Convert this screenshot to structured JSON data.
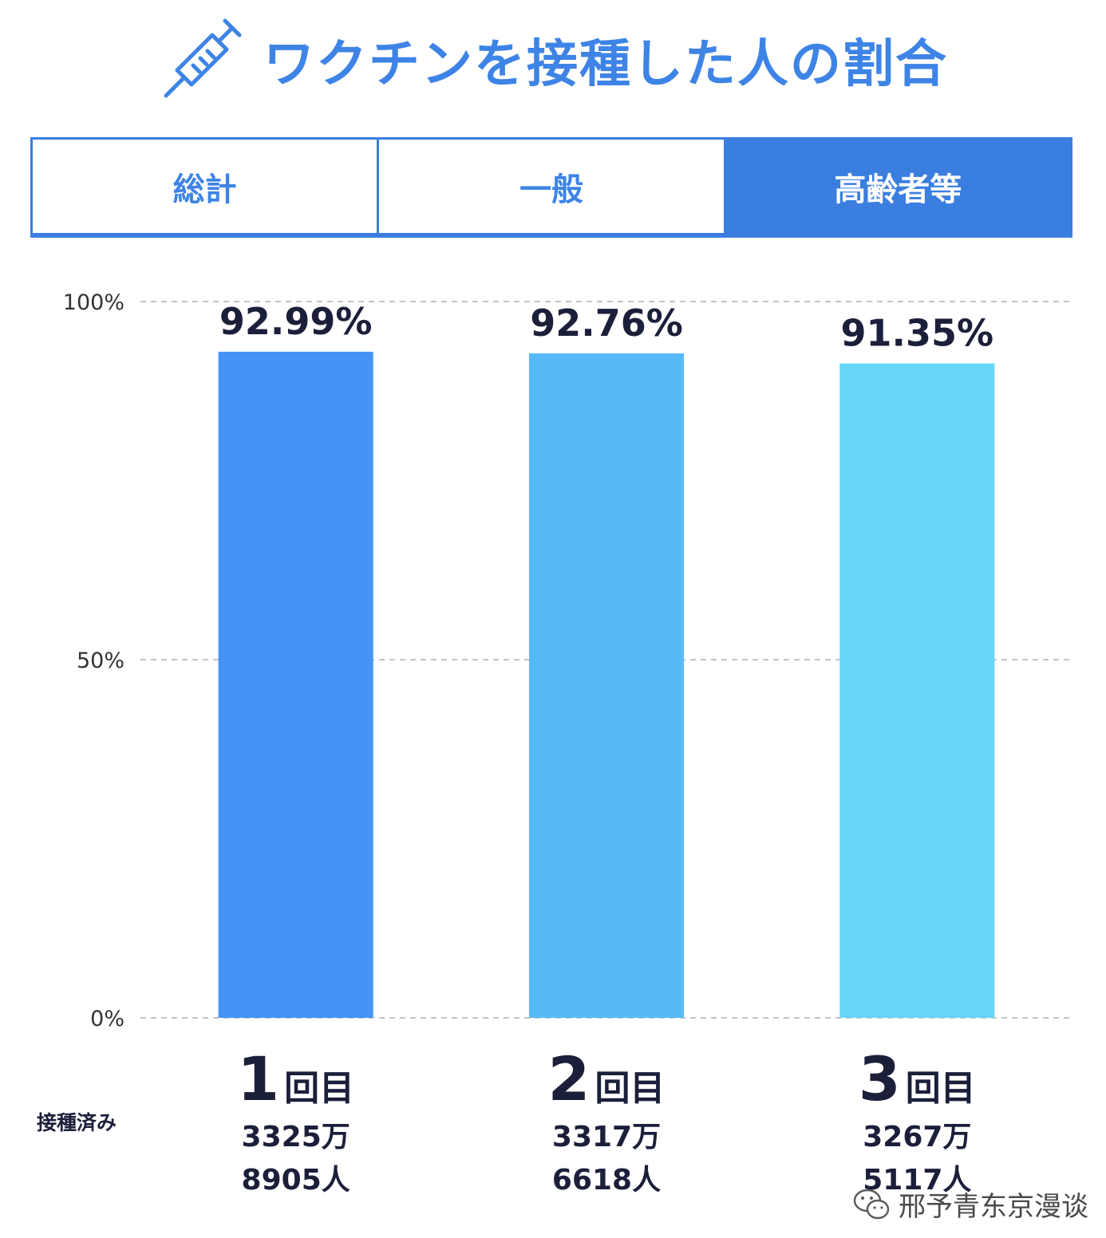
{
  "title": "ワクチンを接種した人の割合",
  "tabs": [
    {
      "label": "総計",
      "active": false
    },
    {
      "label": "一般",
      "active": false
    },
    {
      "label": "高齢者等",
      "active": true
    }
  ],
  "row_label": "接種済み",
  "doses": [
    {
      "num": "1",
      "unit": "回目",
      "count_line1": "3325万",
      "count_line2": "8905人"
    },
    {
      "num": "2",
      "unit": "回目",
      "count_line1": "3317万",
      "count_line2": "6618人"
    },
    {
      "num": "3",
      "unit": "回目",
      "count_line1": "3267万",
      "count_line2": "5117人"
    }
  ],
  "colors": {
    "accent": "#3a7ee0",
    "title": "#3e84e6",
    "text_dark": "#1c1f3a",
    "bar_colors": [
      "#4394f5",
      "#56baf7",
      "#67d6f9"
    ]
  },
  "watermark": "邢予青东京漫谈",
  "chart_data": {
    "type": "bar",
    "categories": [
      "1回目",
      "2回目",
      "3回目"
    ],
    "values": [
      92.99,
      92.76,
      91.35
    ],
    "value_labels": [
      "92.99%",
      "92.76%",
      "91.35%"
    ],
    "ylim": [
      0,
      100
    ],
    "yticks": [
      0,
      50,
      100
    ],
    "ytick_labels": [
      "0%",
      "50%",
      "100%"
    ],
    "grid": true,
    "grid_style": "dashed"
  }
}
